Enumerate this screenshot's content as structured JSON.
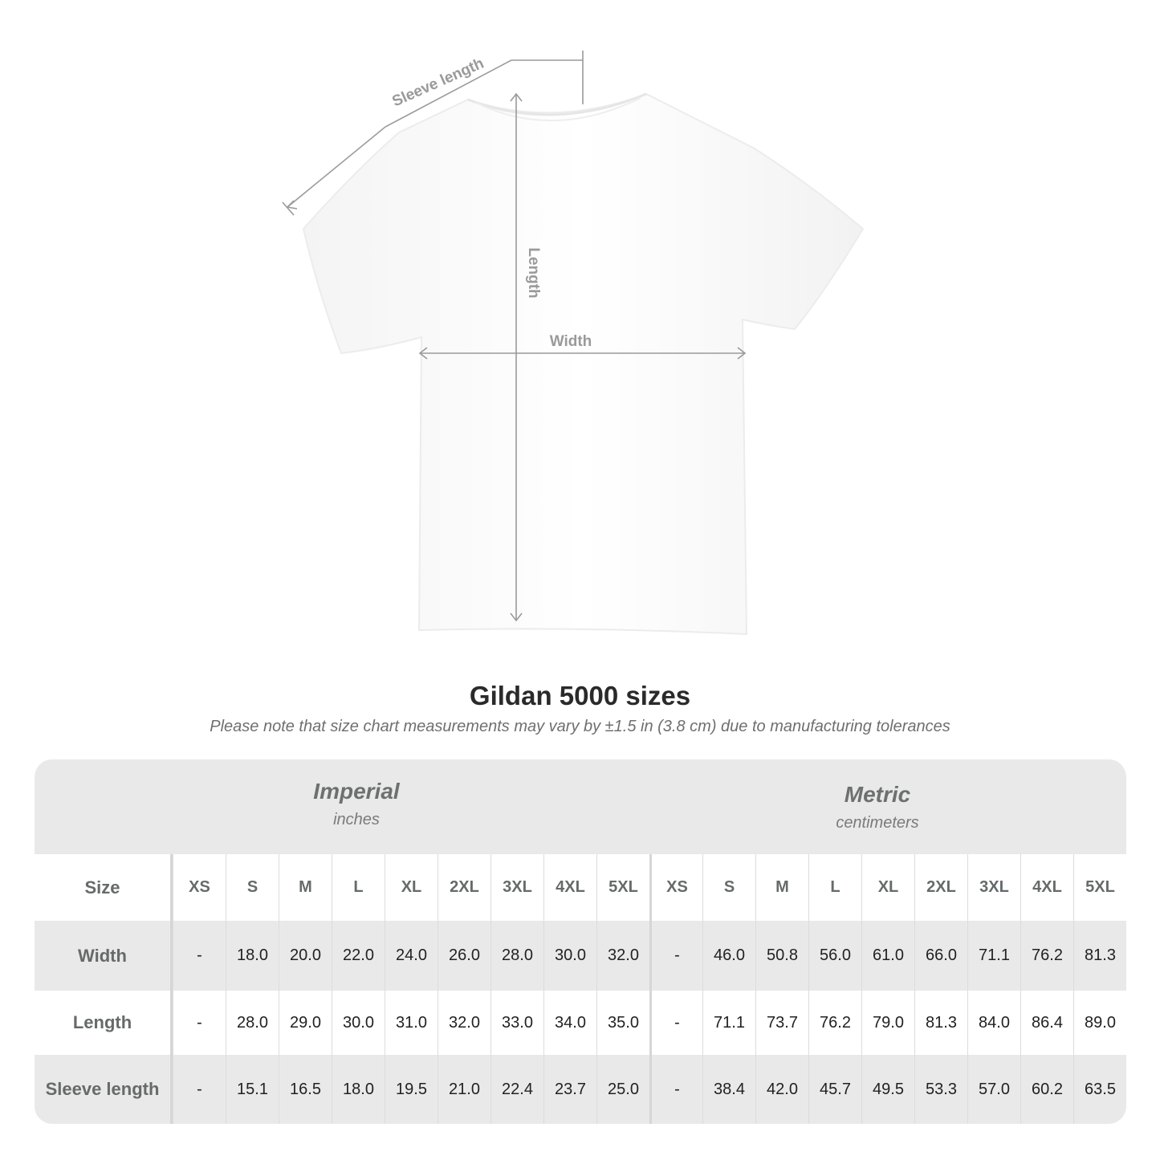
{
  "diagram": {
    "labels": {
      "sleeve": "Sleeve length",
      "length": "Length",
      "width": "Width"
    }
  },
  "title": "Gildan 5000 sizes",
  "subtitle": "Please note that size chart measurements may vary by ±1.5 in (3.8 cm) due to manufacturing tolerances",
  "table": {
    "imperial": {
      "name": "Imperial",
      "unit": "inches"
    },
    "metric": {
      "name": "Metric",
      "unit": "centimeters"
    },
    "size_label": "Size",
    "sizes": [
      "XS",
      "S",
      "M",
      "L",
      "XL",
      "2XL",
      "3XL",
      "4XL",
      "5XL"
    ],
    "rows": [
      {
        "label": "Width",
        "imperial": [
          "-",
          "18.0",
          "20.0",
          "22.0",
          "24.0",
          "26.0",
          "28.0",
          "30.0",
          "32.0"
        ],
        "metric": [
          "-",
          "46.0",
          "50.8",
          "56.0",
          "61.0",
          "66.0",
          "71.1",
          "76.2",
          "81.3"
        ]
      },
      {
        "label": "Length",
        "imperial": [
          "-",
          "28.0",
          "29.0",
          "30.0",
          "31.0",
          "32.0",
          "33.0",
          "34.0",
          "35.0"
        ],
        "metric": [
          "-",
          "71.1",
          "73.7",
          "76.2",
          "79.0",
          "81.3",
          "84.0",
          "86.4",
          "89.0"
        ]
      },
      {
        "label": "Sleeve length",
        "imperial": [
          "-",
          "15.1",
          "16.5",
          "18.0",
          "19.5",
          "21.0",
          "22.4",
          "23.7",
          "25.0"
        ],
        "metric": [
          "-",
          "38.4",
          "42.0",
          "45.7",
          "49.5",
          "53.3",
          "57.0",
          "60.2",
          "63.5"
        ]
      }
    ]
  }
}
